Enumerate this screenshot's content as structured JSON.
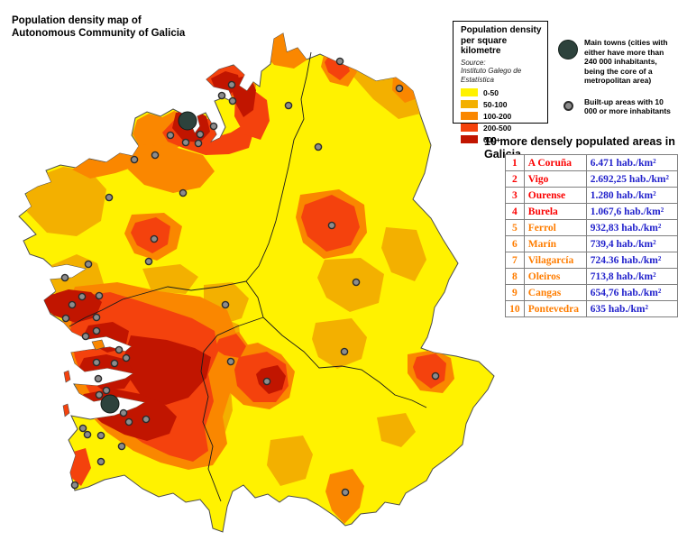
{
  "title": {
    "line1": "Population density map of",
    "line2": "Autonomous Community of Galicia"
  },
  "legend": {
    "title_line1": "Population density",
    "title_line2": "per square kilometre",
    "source_label": "Source:",
    "source_name": "Instituto Galego de Estatística",
    "classes": [
      {
        "label": "0-50",
        "color": "#FFF200"
      },
      {
        "label": "50-100",
        "color": "#F3B000"
      },
      {
        "label": "100-200",
        "color": "#FA8700"
      },
      {
        "label": "200-500",
        "color": "#F4420D"
      },
      {
        "label": "600+",
        "color": "#C11500"
      }
    ]
  },
  "symbols": {
    "main_towns": {
      "label": "Main towns (cities with either have more than 240 000 inhabitants, being the core of a metropolitan area)",
      "color": "#2D423C"
    },
    "built_up": {
      "label": "Built-up areas with 10 000 or more inhabitants",
      "fill": "#8C8C8C",
      "stroke": "#2B2B2B"
    }
  },
  "table": {
    "title": "10 more densely populated areas in Galicia",
    "rows": [
      {
        "rank": "1",
        "name": "A Coruña",
        "value": "6.471 hab./km²",
        "tier": "red"
      },
      {
        "rank": "2",
        "name": "Vigo",
        "value": "2.692,25 hab./km²",
        "tier": "red"
      },
      {
        "rank": "3",
        "name": "Ourense",
        "value": "1.280 hab./km²",
        "tier": "red"
      },
      {
        "rank": "4",
        "name": "Burela",
        "value": "1.067,6 hab./km²",
        "tier": "red"
      },
      {
        "rank": "5",
        "name": "Ferrol",
        "value": "932,83 hab./km²",
        "tier": "orange"
      },
      {
        "rank": "6",
        "name": "Marín",
        "value": "739,4 hab./km²",
        "tier": "orange"
      },
      {
        "rank": "7",
        "name": "Vilagarcía",
        "value": "724.36 hab./km²",
        "tier": "orange"
      },
      {
        "rank": "8",
        "name": "Oleiros",
        "value": "713,8 hab./km²",
        "tier": "orange"
      },
      {
        "rank": "9",
        "name": "Cangas",
        "value": "654,76 hab./km²",
        "tier": "orange"
      },
      {
        "rank": "10",
        "name": "Pontevedra",
        "value": "635 hab./km²",
        "tier": "orange"
      }
    ],
    "colors": {
      "red": "#FB0000",
      "orange": "#FF7D00",
      "value": "#2222CC",
      "border": "#7F7F7F"
    }
  },
  "map": {
    "background": "#FFFFFF",
    "land_outline": "#4D4D4D",
    "province_border": "#1A1A1A",
    "main_towns": [
      [
        208,
        134,
        10
      ],
      [
        122,
        448,
        10
      ]
    ],
    "built_up_dots": [
      [
        257,
        94
      ],
      [
        246,
        106
      ],
      [
        258,
        112
      ],
      [
        237,
        140
      ],
      [
        222,
        149
      ],
      [
        206,
        158
      ],
      [
        220,
        159
      ],
      [
        189,
        150
      ],
      [
        172,
        172
      ],
      [
        149,
        177
      ],
      [
        203,
        214
      ],
      [
        121,
        219
      ],
      [
        171,
        265
      ],
      [
        165,
        290
      ],
      [
        98,
        293
      ],
      [
        72,
        308
      ],
      [
        91,
        329
      ],
      [
        110,
        328
      ],
      [
        377,
        68
      ],
      [
        443,
        98
      ],
      [
        320,
        117
      ],
      [
        353,
        163
      ],
      [
        368,
        250
      ],
      [
        395,
        313
      ],
      [
        382,
        390
      ],
      [
        483,
        417
      ],
      [
        250,
        338
      ],
      [
        80,
        338
      ],
      [
        73,
        353
      ],
      [
        107,
        352
      ],
      [
        107,
        367
      ],
      [
        95,
        373
      ],
      [
        132,
        388
      ],
      [
        140,
        397
      ],
      [
        127,
        403
      ],
      [
        107,
        402
      ],
      [
        109,
        420
      ],
      [
        118,
        433
      ],
      [
        110,
        438
      ],
      [
        137,
        458
      ],
      [
        143,
        468
      ],
      [
        162,
        465
      ],
      [
        92,
        475
      ],
      [
        97,
        482
      ],
      [
        112,
        483
      ],
      [
        135,
        495
      ],
      [
        112,
        512
      ],
      [
        83,
        538
      ],
      [
        296,
        423
      ],
      [
        256,
        401
      ],
      [
        383,
        546
      ]
    ]
  }
}
